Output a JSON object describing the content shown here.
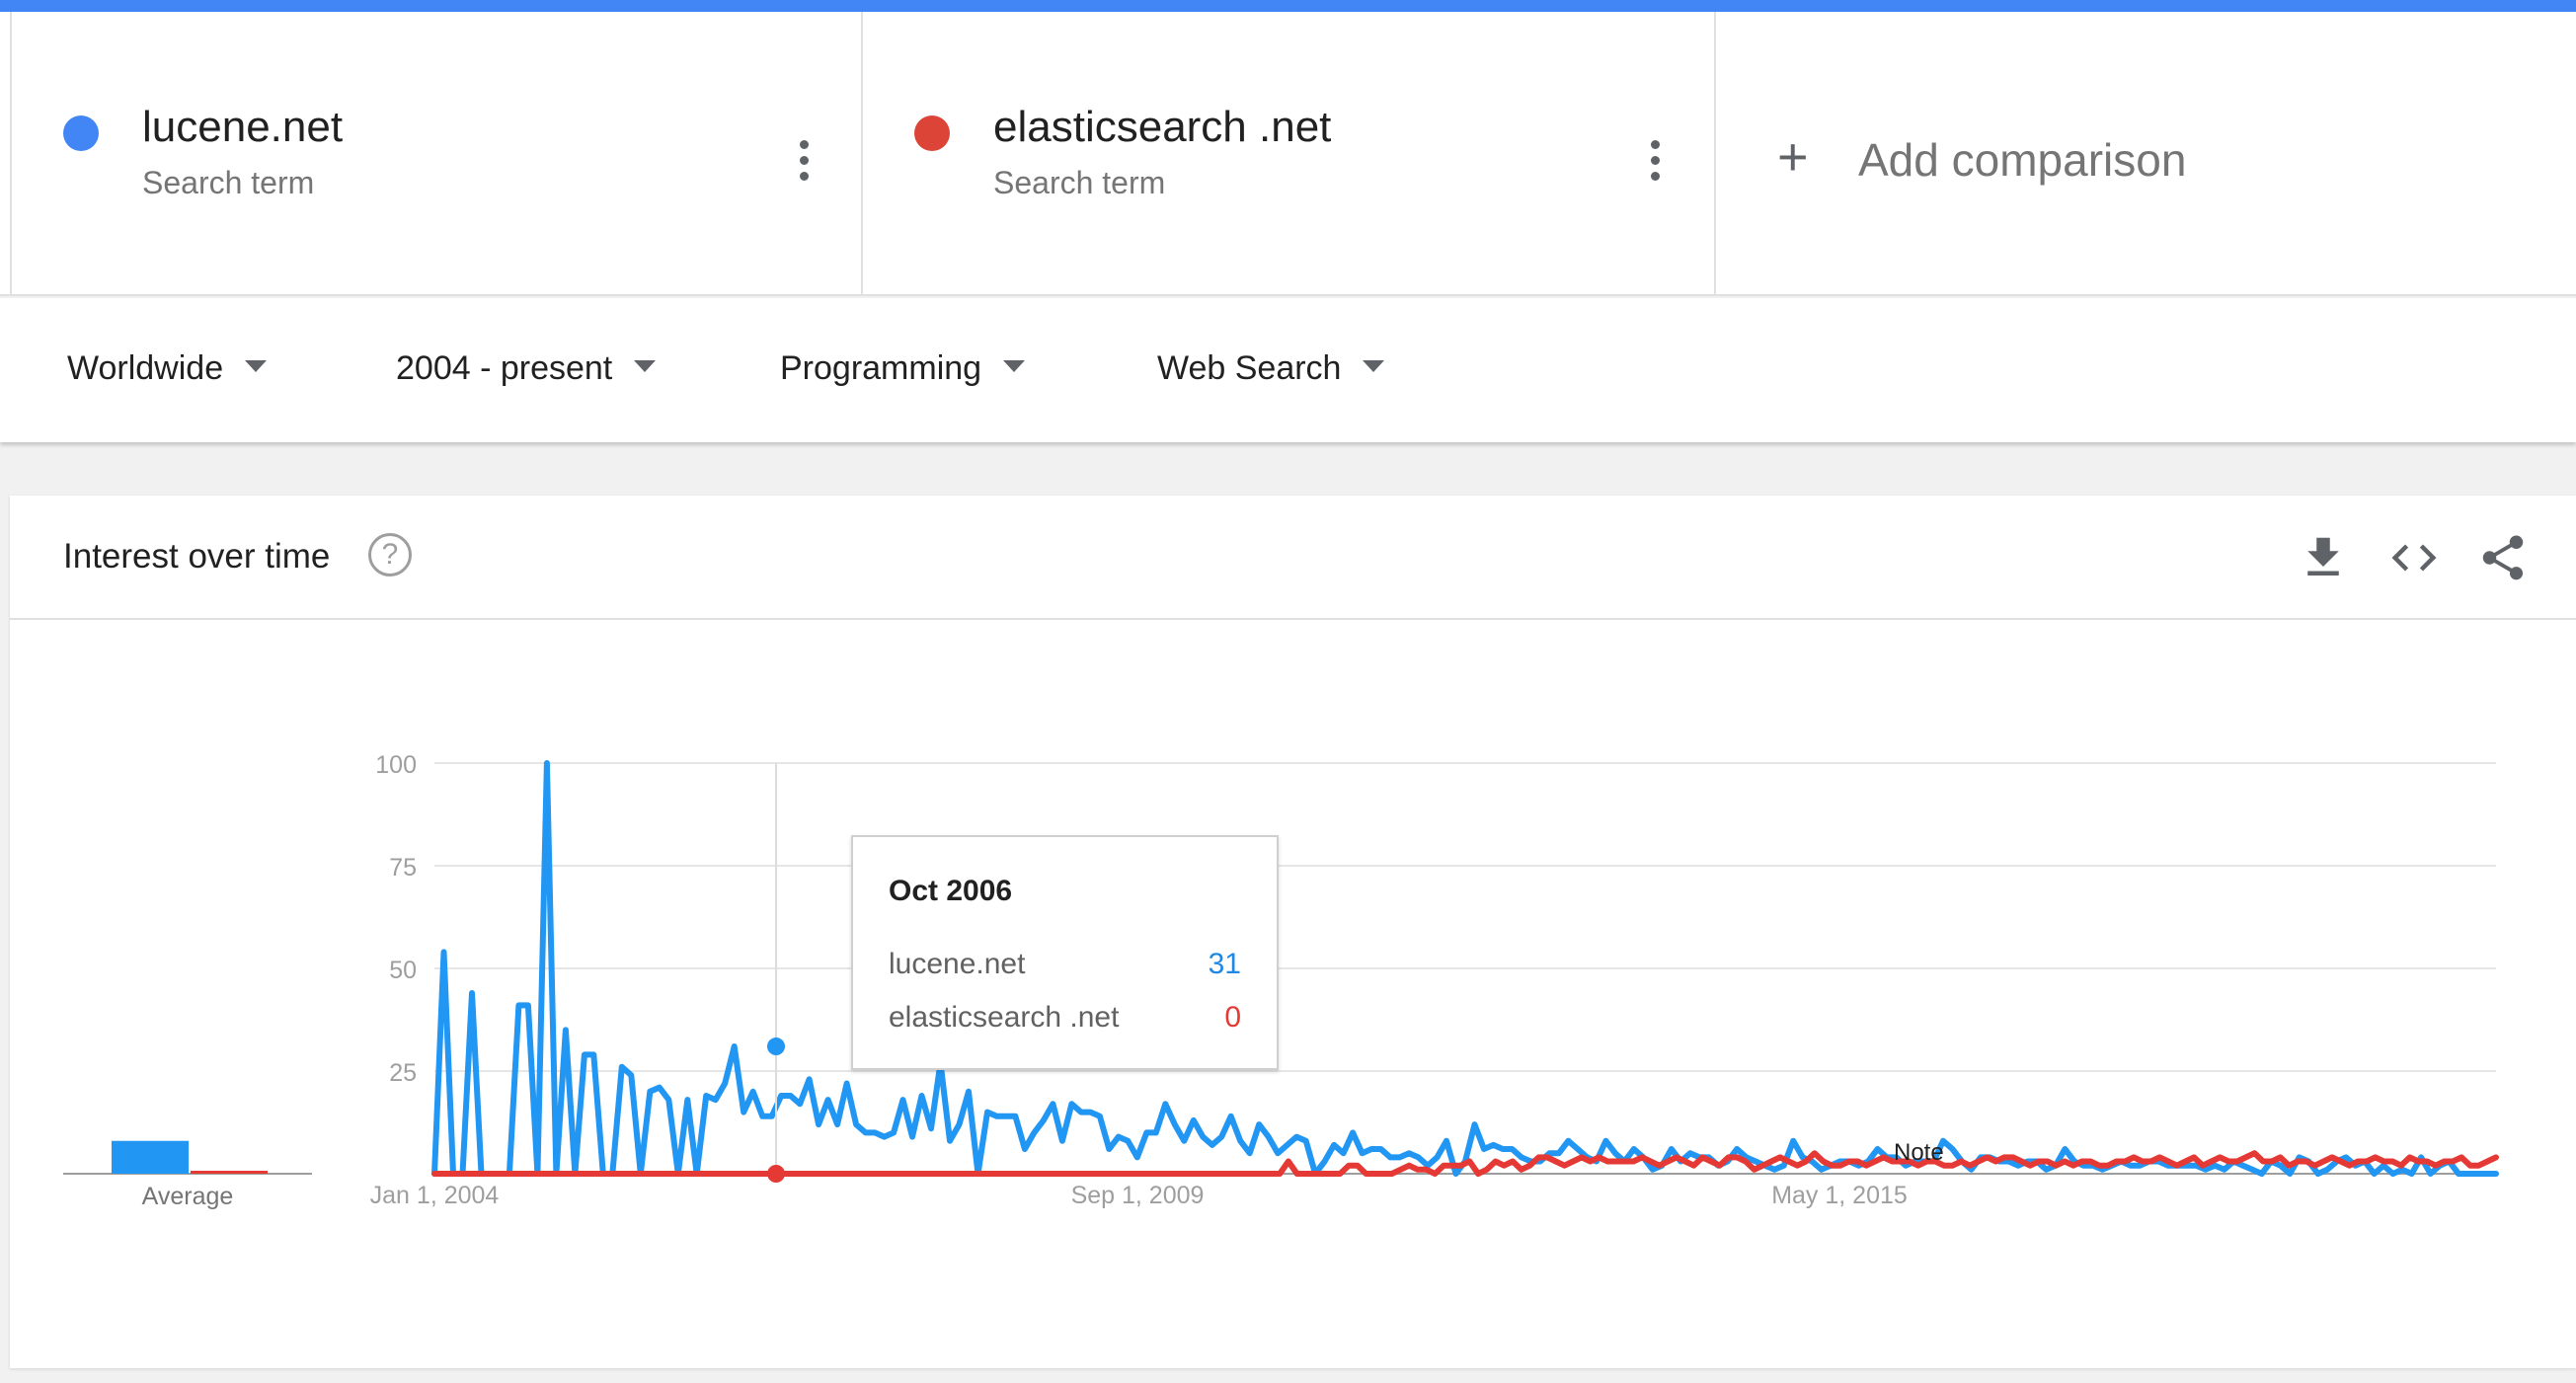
{
  "terms": [
    {
      "name": "lucene.net",
      "sub": "Search term",
      "color": "#4285f4"
    },
    {
      "name": "elasticsearch .net",
      "sub": "Search term",
      "color": "#db4437"
    }
  ],
  "add_comparison": "Add comparison",
  "filters": {
    "region": "Worldwide",
    "time": "2004 - present",
    "category": "Programming",
    "search_type": "Web Search"
  },
  "card": {
    "title": "Interest over time",
    "help_glyph": "?",
    "icons": [
      "download-icon",
      "embed-icon",
      "share-icon"
    ]
  },
  "tooltip": {
    "date": "Oct 2006",
    "rows": [
      {
        "label": "lucene.net",
        "value": "31",
        "color": "#1e88e5"
      },
      {
        "label": "elasticsearch .net",
        "value": "0",
        "color": "#e53935"
      }
    ]
  },
  "chart_data": {
    "type": "line",
    "x_start": "Jan 2004",
    "x_end": "Jan 2018",
    "x_tick_labels": [
      "Jan 1, 2004",
      "Sep 1, 2009",
      "May 1, 2015"
    ],
    "y_ticks": [
      25,
      50,
      75,
      100
    ],
    "ylim": [
      0,
      100
    ],
    "average_label": "Average",
    "note_label": "Note",
    "colors": {
      "lucene": "#2196f3",
      "elastic": "#e53935"
    },
    "averages": [
      8,
      0
    ],
    "series": [
      {
        "name": "lucene.net",
        "values": [
          0,
          54,
          0,
          0,
          44,
          0,
          0,
          0,
          0,
          41,
          41,
          0,
          100,
          0,
          35,
          0,
          29,
          29,
          0,
          0,
          26,
          24,
          0,
          20,
          21,
          18,
          0,
          18,
          0,
          19,
          18,
          22,
          31,
          15,
          20,
          14,
          14,
          19,
          19,
          17,
          23,
          12,
          18,
          12,
          22,
          12,
          10,
          10,
          9,
          10,
          18,
          9,
          19,
          11,
          27,
          8,
          12,
          20,
          0,
          15,
          14,
          14,
          14,
          6,
          10,
          13,
          17,
          8,
          17,
          15,
          15,
          14,
          6,
          9,
          8,
          4,
          10,
          10,
          17,
          12,
          8,
          13,
          9,
          7,
          9,
          14,
          8,
          5,
          12,
          9,
          5,
          7,
          9,
          8,
          0,
          3,
          7,
          5,
          10,
          5,
          6,
          6,
          4,
          4,
          5,
          4,
          2,
          4,
          8,
          0,
          3,
          12,
          6,
          7,
          6,
          6,
          4,
          3,
          3,
          5,
          5,
          8,
          6,
          4,
          3,
          8,
          5,
          3,
          6,
          4,
          1,
          2,
          6,
          3,
          5,
          4,
          4,
          2,
          3,
          6,
          4,
          3,
          2,
          1,
          2,
          8,
          4,
          3,
          1,
          2,
          3,
          3,
          2,
          3,
          6,
          4,
          4,
          2,
          3,
          3,
          3,
          8,
          6,
          3,
          1,
          4,
          4,
          3,
          3,
          2,
          3,
          3,
          1,
          2,
          6,
          3,
          2,
          2,
          1,
          2,
          3,
          2,
          2,
          3,
          3,
          2,
          2,
          2,
          2,
          1,
          2,
          1,
          3,
          2,
          1,
          0,
          3,
          2,
          0,
          4,
          3,
          0,
          1,
          3,
          4,
          2,
          3,
          0,
          2,
          0,
          1,
          0,
          4,
          0,
          2,
          3,
          0,
          0,
          0,
          0,
          0
        ],
        "color": "#2196f3"
      },
      {
        "name": "elasticsearch .net",
        "values": [
          0,
          0,
          0,
          0,
          0,
          0,
          0,
          0,
          0,
          0,
          0,
          0,
          0,
          0,
          0,
          0,
          0,
          0,
          0,
          0,
          0,
          0,
          0,
          0,
          0,
          0,
          0,
          0,
          0,
          0,
          0,
          0,
          0,
          0,
          0,
          0,
          0,
          0,
          0,
          0,
          0,
          0,
          0,
          0,
          0,
          0,
          0,
          0,
          0,
          0,
          0,
          0,
          0,
          0,
          0,
          0,
          0,
          0,
          0,
          0,
          0,
          0,
          0,
          0,
          0,
          0,
          0,
          0,
          0,
          0,
          0,
          0,
          0,
          0,
          0,
          0,
          0,
          0,
          0,
          0,
          0,
          0,
          0,
          0,
          0,
          0,
          0,
          0,
          0,
          0,
          0,
          0,
          0,
          0,
          0,
          0,
          0,
          0,
          0,
          3,
          0,
          0,
          0,
          0,
          0,
          0,
          2,
          2,
          0,
          0,
          0,
          0,
          1,
          2,
          1,
          1,
          0,
          2,
          2,
          2,
          3,
          0,
          1,
          3,
          2,
          3,
          1,
          2,
          4,
          4,
          3,
          2,
          3,
          4,
          3,
          4,
          3,
          3,
          3,
          3,
          4,
          3,
          2,
          3,
          4,
          3,
          2,
          4,
          3,
          2,
          4,
          4,
          3,
          1,
          2,
          3,
          4,
          3,
          2,
          3,
          5,
          3,
          2,
          2,
          3,
          3,
          2,
          3,
          4,
          3,
          3,
          3,
          2,
          3,
          3,
          2,
          2,
          3,
          2,
          3,
          4,
          3,
          4,
          4,
          3,
          2,
          3,
          3,
          2,
          3,
          2,
          3,
          3,
          2,
          2,
          3,
          3,
          4,
          3,
          3,
          4,
          3,
          2,
          3,
          4,
          2,
          3,
          4,
          3,
          3,
          4,
          5,
          3,
          3,
          4,
          2,
          3,
          3,
          2,
          3,
          4,
          3,
          2,
          3,
          3,
          4,
          3,
          3,
          2,
          4,
          3,
          3,
          2,
          3,
          3,
          4,
          2,
          2,
          3,
          4
        ],
        "color": "#e53935"
      }
    ]
  }
}
